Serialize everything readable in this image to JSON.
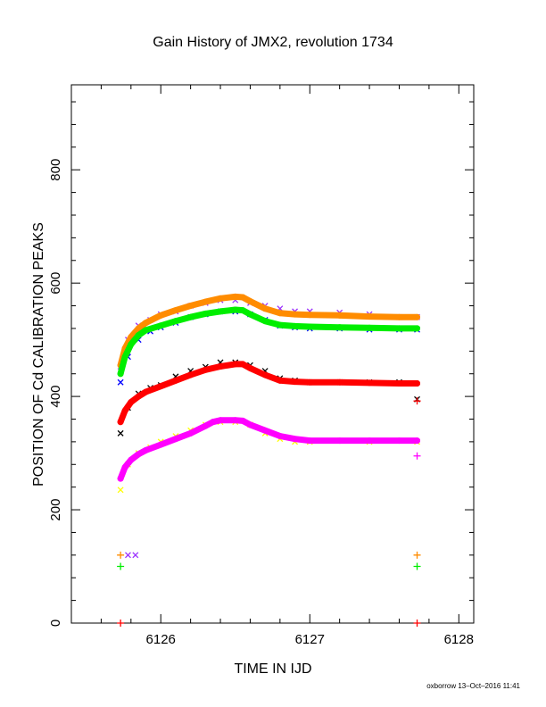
{
  "chart_data": {
    "type": "scatter",
    "title": "Gain History of JMX2, revolution 1734",
    "xlabel": "TIME IN IJD",
    "ylabel": "POSITION OF Cd CALIBRATION PEAKS",
    "xlim": [
      6125.4,
      6128.1
    ],
    "ylim": [
      0,
      950
    ],
    "x_ticks": [
      6126,
      6127,
      6128
    ],
    "y_ticks": [
      0,
      200,
      400,
      600,
      800
    ],
    "grid": false,
    "footer": "oxborrow 13–Oct–2016 11:41",
    "series": [
      {
        "color": "#9b30ff",
        "marker": "x",
        "x": [
          6125.73,
          6125.78,
          6125.85,
          6125.93,
          6126.0,
          6126.1,
          6126.2,
          6126.3,
          6126.4,
          6126.5,
          6126.6,
          6126.7,
          6126.8,
          6126.9,
          6127.0,
          6127.2,
          6127.4,
          6127.6,
          6127.72
        ],
        "y": [
          445,
          500,
          525,
          535,
          545,
          550,
          560,
          565,
          570,
          570,
          565,
          560,
          555,
          550,
          550,
          548,
          545,
          540,
          540
        ]
      },
      {
        "color": "#ff8c00",
        "marker": "line",
        "x": [
          6125.73,
          6125.76,
          6125.8,
          6125.85,
          6125.9,
          6126.0,
          6126.1,
          6126.2,
          6126.3,
          6126.4,
          6126.5,
          6126.55,
          6126.6,
          6126.7,
          6126.8,
          6126.9,
          6127.0,
          6127.2,
          6127.4,
          6127.6,
          6127.72
        ],
        "y": [
          455,
          485,
          505,
          520,
          530,
          543,
          552,
          560,
          567,
          573,
          576,
          575,
          568,
          555,
          547,
          545,
          544,
          543,
          541,
          540,
          540
        ]
      },
      {
        "color": "#0000ff",
        "marker": "x",
        "x": [
          6125.73,
          6125.78,
          6125.85,
          6125.93,
          6126.0,
          6126.1,
          6126.2,
          6126.3,
          6126.4,
          6126.5,
          6126.6,
          6126.7,
          6126.8,
          6126.9,
          6127.0,
          6127.2,
          6127.4,
          6127.6,
          6127.72
        ],
        "y": [
          425,
          470,
          500,
          515,
          522,
          530,
          540,
          545,
          550,
          550,
          545,
          535,
          525,
          522,
          520,
          520,
          518,
          518,
          518
        ]
      },
      {
        "color": "#00ee00",
        "marker": "line",
        "x": [
          6125.73,
          6125.76,
          6125.8,
          6125.85,
          6125.9,
          6126.0,
          6126.1,
          6126.2,
          6126.3,
          6126.4,
          6126.5,
          6126.55,
          6126.6,
          6126.7,
          6126.8,
          6126.9,
          6127.0,
          6127.2,
          6127.4,
          6127.6,
          6127.72
        ],
        "y": [
          440,
          470,
          492,
          508,
          517,
          525,
          533,
          540,
          546,
          550,
          553,
          552,
          545,
          533,
          526,
          524,
          523,
          522,
          521,
          520,
          520
        ]
      },
      {
        "color": "#000000",
        "marker": "x",
        "x": [
          6125.73,
          6125.78,
          6125.85,
          6125.93,
          6126.0,
          6126.1,
          6126.2,
          6126.3,
          6126.4,
          6126.5,
          6126.6,
          6126.7,
          6126.8,
          6126.9,
          6127.0,
          6127.2,
          6127.4,
          6127.6,
          6127.72
        ],
        "y": [
          335,
          380,
          405,
          415,
          420,
          435,
          445,
          452,
          460,
          460,
          455,
          445,
          432,
          428,
          425,
          425,
          425,
          425,
          395
        ]
      },
      {
        "color": "#ff0000",
        "marker": "line",
        "x": [
          6125.73,
          6125.76,
          6125.8,
          6125.85,
          6125.9,
          6126.0,
          6126.1,
          6126.2,
          6126.3,
          6126.4,
          6126.5,
          6126.55,
          6126.6,
          6126.7,
          6126.8,
          6126.9,
          6127.0,
          6127.2,
          6127.4,
          6127.6,
          6127.72
        ],
        "y": [
          355,
          375,
          390,
          400,
          408,
          418,
          428,
          438,
          447,
          453,
          457,
          457,
          450,
          438,
          428,
          426,
          425,
          425,
          424,
          423,
          423
        ]
      },
      {
        "color": "#ffff00",
        "marker": "x",
        "x": [
          6125.73,
          6125.78,
          6125.85,
          6125.93,
          6126.0,
          6126.1,
          6126.2,
          6126.3,
          6126.4,
          6126.5,
          6126.6,
          6126.7,
          6126.8,
          6126.9,
          6127.0,
          6127.2,
          6127.4,
          6127.6,
          6127.72
        ],
        "y": [
          235,
          280,
          300,
          310,
          320,
          330,
          340,
          350,
          355,
          355,
          350,
          335,
          325,
          320,
          320,
          322,
          320,
          322,
          320
        ]
      },
      {
        "color": "#ff00ff",
        "marker": "line",
        "x": [
          6125.73,
          6125.76,
          6125.8,
          6125.85,
          6125.9,
          6126.0,
          6126.1,
          6126.2,
          6126.3,
          6126.35,
          6126.4,
          6126.5,
          6126.55,
          6126.6,
          6126.7,
          6126.8,
          6126.9,
          6127.0,
          6127.2,
          6127.4,
          6127.6,
          6127.72
        ],
        "y": [
          255,
          275,
          288,
          298,
          305,
          315,
          325,
          335,
          348,
          355,
          358,
          358,
          357,
          350,
          340,
          330,
          325,
          322,
          322,
          322,
          322,
          322
        ]
      },
      {
        "color": "#ff8c00",
        "marker": "+",
        "x": [
          6125.73,
          6127.72
        ],
        "y": [
          120,
          120
        ]
      },
      {
        "color": "#00ee00",
        "marker": "+",
        "x": [
          6125.73,
          6127.72
        ],
        "y": [
          100,
          100
        ]
      },
      {
        "color": "#9b30ff",
        "marker": "x",
        "x": [
          6125.78,
          6125.83
        ],
        "y": [
          120,
          120
        ]
      },
      {
        "color": "#ff0000",
        "marker": "+",
        "x": [
          6125.73,
          6127.72
        ],
        "y": [
          0,
          0
        ]
      },
      {
        "color": "#ff0000",
        "marker": "+",
        "x": [
          6127.72
        ],
        "y": [
          392
        ]
      },
      {
        "color": "#ff00ff",
        "marker": "+",
        "x": [
          6127.72
        ],
        "y": [
          295
        ]
      }
    ]
  }
}
